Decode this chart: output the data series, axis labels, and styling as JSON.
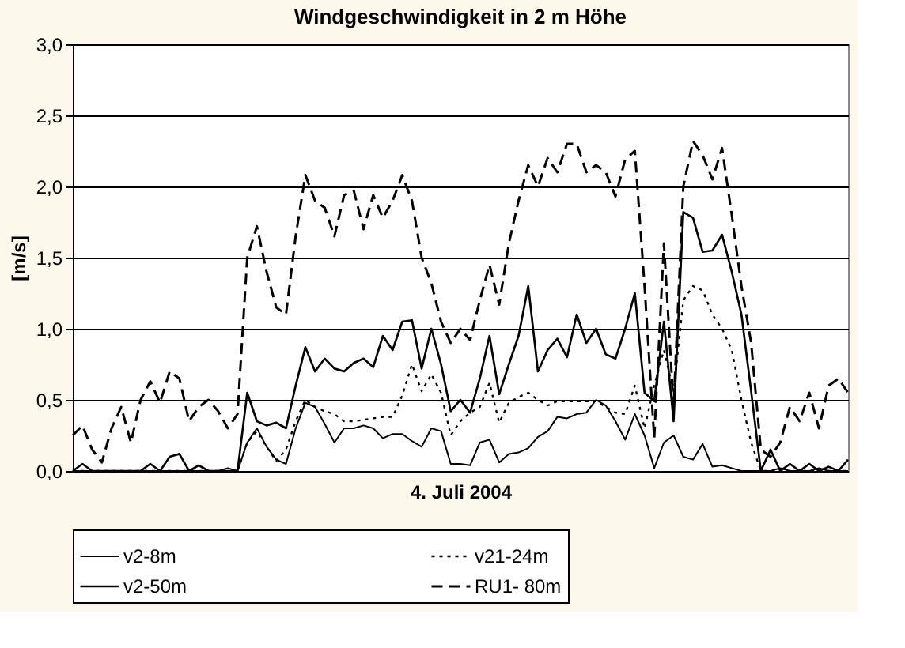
{
  "chart_data": {
    "type": "line",
    "title": "Windgeschwindigkeit in 2 m Höhe",
    "xlabel": "4. Juli 2004",
    "ylabel": "[m/s]",
    "categories": [
      null,
      null,
      null,
      null,
      null,
      null,
      null,
      null,
      null,
      null,
      null,
      null,
      null,
      null,
      null,
      null,
      null,
      null,
      null,
      null,
      null,
      null,
      null,
      null,
      null,
      null,
      null,
      null,
      null,
      null,
      null,
      null,
      null,
      null,
      null,
      null,
      null,
      null,
      null,
      null,
      null,
      null,
      null,
      null,
      null,
      null,
      null,
      null,
      null,
      null,
      null,
      null,
      null,
      null,
      null,
      null,
      null,
      null,
      null,
      null,
      null,
      null,
      null,
      null,
      null,
      null,
      null,
      null,
      null,
      null,
      null,
      null,
      null,
      null,
      null,
      null,
      null,
      null,
      null,
      null,
      null
    ],
    "series": [
      {
        "name": "v2-8m",
        "color": "#000000",
        "line_style": "solid",
        "values": [
          0,
          0,
          0,
          0,
          0,
          0,
          0,
          0,
          0,
          0,
          0,
          0,
          0,
          0,
          0,
          0,
          0.02,
          0,
          0.2,
          0.3,
          0.17,
          0.08,
          0.05,
          0.3,
          0.48,
          0.45,
          0.33,
          0.2,
          0.3,
          0.3,
          0.32,
          0.3,
          0.23,
          0.26,
          0.26,
          0.21,
          0.17,
          0.3,
          0.28,
          0.05,
          0.05,
          0.04,
          0.2,
          0.22,
          0.06,
          0.12,
          0.13,
          0.16,
          0.24,
          0.28,
          0.38,
          0.37,
          0.4,
          0.41,
          0.5,
          0.46,
          0.35,
          0.22,
          0.4,
          0.25,
          0.02,
          0.2,
          0.25,
          0.1,
          0.08,
          0.19,
          0.03,
          0.04,
          0.02,
          0,
          0,
          0,
          0,
          0.02,
          0,
          0,
          0,
          0.02,
          0,
          0,
          0
        ]
      },
      {
        "name": "v21-24m",
        "color": "#000000",
        "line_style": "dotted",
        "values": [
          0,
          0,
          0,
          0,
          0,
          0,
          0,
          0,
          0,
          0,
          0,
          0,
          0,
          0,
          0,
          0,
          0,
          0,
          0.2,
          0.28,
          0.17,
          0.07,
          0.15,
          0.35,
          0.5,
          0.45,
          0.42,
          0.4,
          0.35,
          0.35,
          0.36,
          0.37,
          0.38,
          0.38,
          0.53,
          0.75,
          0.56,
          0.68,
          0.55,
          0.25,
          0.35,
          0.41,
          0.45,
          0.62,
          0.34,
          0.48,
          0.52,
          0.55,
          0.5,
          0.46,
          0.49,
          0.49,
          0.49,
          0.49,
          0.49,
          0.45,
          0.41,
          0.4,
          0.6,
          0.3,
          0.6,
          0.85,
          0.56,
          1.2,
          1.3,
          1.27,
          1.1,
          1.0,
          0.85,
          0.5,
          0.2,
          0,
          0,
          0,
          0,
          0,
          0,
          0,
          0,
          0,
          0
        ]
      },
      {
        "name": "v2-50m",
        "color": "#000000",
        "line_style": "solid",
        "values": [
          0,
          0.05,
          0,
          0,
          0,
          0,
          0,
          0,
          0.05,
          0,
          0.1,
          0.12,
          0,
          0.04,
          0,
          0,
          0,
          0,
          0.55,
          0.35,
          0.32,
          0.34,
          0.3,
          0.6,
          0.87,
          0.7,
          0.79,
          0.72,
          0.7,
          0.76,
          0.79,
          0.73,
          0.95,
          0.85,
          1.05,
          1.06,
          0.72,
          1.0,
          0.75,
          0.42,
          0.5,
          0.41,
          0.65,
          0.95,
          0.54,
          0.75,
          0.95,
          1.3,
          0.7,
          0.85,
          0.93,
          0.8,
          1.1,
          0.9,
          1.0,
          0.82,
          0.79,
          1.0,
          1.25,
          0.55,
          0.49,
          1.05,
          0.35,
          1.82,
          1.78,
          1.54,
          1.55,
          1.66,
          1.4,
          1.1,
          0.56,
          0,
          0.15,
          0,
          0.05,
          0,
          0.05,
          0,
          0.03,
          0,
          0.08
        ]
      },
      {
        "name": "RU1- 80m",
        "color": "#000000",
        "line_style": "dashed",
        "values": [
          0.25,
          0.32,
          0.15,
          0.06,
          0.3,
          0.45,
          0.2,
          0.5,
          0.63,
          0.48,
          0.7,
          0.65,
          0.35,
          0.45,
          0.5,
          0.42,
          0.3,
          0.4,
          1.5,
          1.72,
          1.4,
          1.15,
          1.1,
          1.65,
          2.08,
          1.9,
          1.85,
          1.65,
          1.94,
          1.97,
          1.7,
          1.94,
          1.78,
          1.9,
          2.08,
          1.9,
          1.5,
          1.32,
          1.05,
          0.9,
          1.0,
          0.92,
          1.2,
          1.45,
          1.17,
          1.6,
          1.9,
          2.15,
          2.0,
          2.2,
          2.1,
          2.3,
          2.3,
          2.1,
          2.15,
          2.1,
          1.93,
          2.19,
          2.25,
          1.3,
          0.23,
          1.6,
          0.45,
          2.0,
          2.32,
          2.22,
          2.05,
          2.27,
          1.8,
          1.3,
          0.9,
          0.15,
          0.1,
          0.2,
          0.45,
          0.35,
          0.55,
          0.3,
          0.6,
          0.65,
          0.55
        ]
      }
    ],
    "ylim": [
      0,
      3
    ],
    "yticks": [
      {
        "value": 0,
        "label": "0,0"
      },
      {
        "value": 0.5,
        "label": "0,5"
      },
      {
        "value": 1,
        "label": "1,0"
      },
      {
        "value": 1.5,
        "label": "1,5"
      },
      {
        "value": 2,
        "label": "2,0"
      },
      {
        "value": 2.5,
        "label": "2,5"
      },
      {
        "value": 3,
        "label": "3,0"
      }
    ],
    "grid": "y",
    "legend": "bottom",
    "tick_labels": "y",
    "marker": "none"
  }
}
